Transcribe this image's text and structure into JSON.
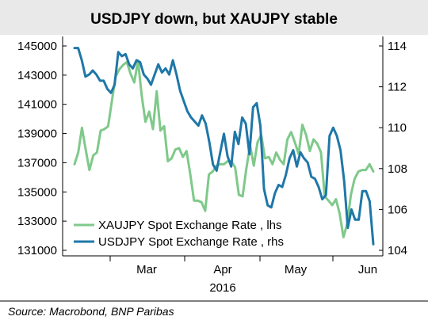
{
  "chart_data": {
    "type": "line",
    "title": "USDJPY down, but XAUJPY stable",
    "source": "Source: Macrobond, BNP Paribas",
    "x_ticks": [
      "Mar",
      "Apr",
      "May",
      "Jun"
    ],
    "x_year_label": "2016",
    "y_left": {
      "ticks": [
        145000,
        143000,
        141000,
        139000,
        137000,
        135000,
        133000,
        131000
      ],
      "range": [
        131000,
        145000
      ]
    },
    "y_right": {
      "ticks": [
        114,
        112,
        110,
        108,
        106,
        104
      ],
      "range": [
        104,
        114
      ]
    },
    "legend_position": "bottom-left",
    "grid": false,
    "series": [
      {
        "name": "XAUJPY Spot Exchange Rate , lhs",
        "axis": "left",
        "color": "#7fc98a",
        "values": [
          136900,
          137700,
          139400,
          137900,
          136500,
          137500,
          137700,
          139200,
          139300,
          139500,
          141200,
          142900,
          143400,
          143700,
          143900,
          143100,
          142500,
          144000,
          141600,
          139800,
          140500,
          139300,
          141900,
          139200,
          139500,
          137100,
          137300,
          137900,
          138000,
          137400,
          137800,
          136200,
          134400,
          134400,
          134300,
          133700,
          136200,
          136400,
          136800,
          136900,
          136900,
          137100,
          137100,
          136700,
          134800,
          134700,
          136600,
          138200,
          136800,
          138400,
          138900,
          137300,
          137400,
          136900,
          137700,
          137200,
          136900,
          138600,
          139100,
          138400,
          137600,
          139600,
          138900,
          137800,
          138600,
          138300,
          137700,
          134700,
          134400,
          134100,
          134500,
          133500,
          131900,
          132800,
          134800,
          135900,
          136400,
          136500,
          136500,
          136900,
          136400
        ]
      },
      {
        "name": "USDJPY Spot Exchange Rate , rhs",
        "axis": "right",
        "color": "#1f77a8",
        "values": [
          113.9,
          113.9,
          113.3,
          112.5,
          112.6,
          112.8,
          112.6,
          112.3,
          112.3,
          111.9,
          111.7,
          112.1,
          113.7,
          113.5,
          113.6,
          113.1,
          112.9,
          113.3,
          113.2,
          112.6,
          112.4,
          112.1,
          112.6,
          113.1,
          112.7,
          112.9,
          112.6,
          113.3,
          112.6,
          111.8,
          111.3,
          110.8,
          110.5,
          110.3,
          110.1,
          110.6,
          110.2,
          109.3,
          108.2,
          107.9,
          108.8,
          109.7,
          108.6,
          108.1,
          109.8,
          109.2,
          110.5,
          110.2,
          108.7,
          111.0,
          111.2,
          110.1,
          107.0,
          106.2,
          106.1,
          106.8,
          107.2,
          107.1,
          107.7,
          108.5,
          108.9,
          108.1,
          108.8,
          108.5,
          108.3,
          107.6,
          107.5,
          107.1,
          106.5,
          106.7,
          109.6,
          110.0,
          109.6,
          108.9,
          107.4,
          105.1,
          106.0,
          105.5,
          105.5,
          106.9,
          106.9,
          106.4,
          104.3
        ]
      }
    ]
  }
}
